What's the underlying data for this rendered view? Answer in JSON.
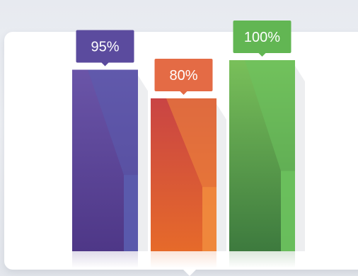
{
  "chart_data": {
    "type": "bar",
    "values": [
      95,
      80,
      100
    ],
    "data_labels": [
      "95%",
      "80%",
      "100%"
    ],
    "ylim": [
      0,
      100
    ],
    "grid": false,
    "legend": "none",
    "colors": [
      {
        "top": "#6a55a8",
        "bottom": "#4e3787",
        "side": "#5a5cae",
        "tag": "#5b4b9e"
      },
      {
        "top": "#c94444",
        "bottom": "#e66a2a",
        "side": "#f08a3d",
        "tag": "#e46b45"
      },
      {
        "top": "#79c05a",
        "bottom": "#3d7a3e",
        "side": "#6cc25e",
        "tag": "#62b653"
      }
    ]
  }
}
